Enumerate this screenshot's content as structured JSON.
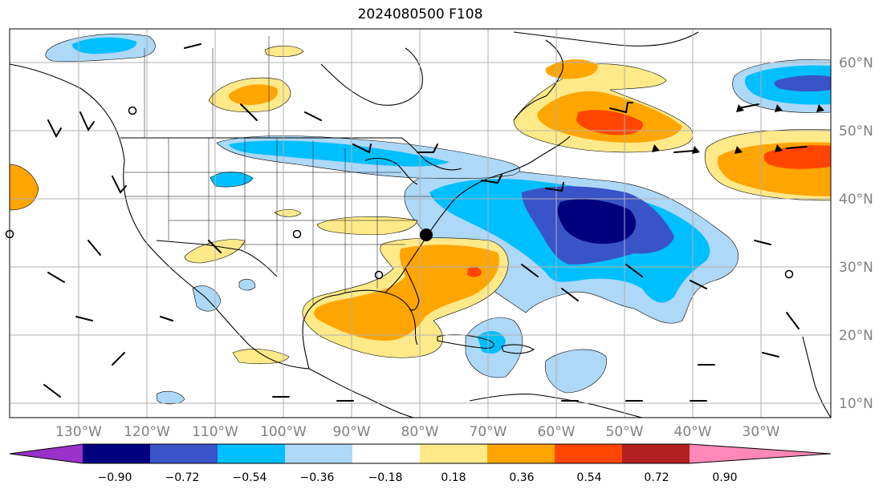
{
  "title": "2024080500 F108",
  "lat_labels": [
    "60°N",
    "50°N",
    "40°N",
    "30°N",
    "20°N",
    "10°N"
  ],
  "lon_labels": [
    "130°W",
    "120°W",
    "110°W",
    "100°W",
    "90°W",
    "80°W",
    "70°W",
    "60°W",
    "50°W",
    "40°W",
    "30°W"
  ],
  "colorbar": {
    "ticks": [
      "−0.90",
      "−0.72",
      "−0.54",
      "−0.36",
      "−0.18",
      "0.18",
      "0.36",
      "0.54",
      "0.72",
      "0.90"
    ],
    "colors": {
      "below": "#9a31c9",
      "bins": [
        "#00007f",
        "#3953c8",
        "#00bfff",
        "#add8f7",
        "#ffffff",
        "#ffe989",
        "#ffa500",
        "#ff4500",
        "#b21f1f"
      ],
      "above": "#ff88b8"
    }
  },
  "map": {
    "grid_color": "#b0b0b0",
    "coastline_color": "#000000",
    "marker_color": "#000000"
  }
}
